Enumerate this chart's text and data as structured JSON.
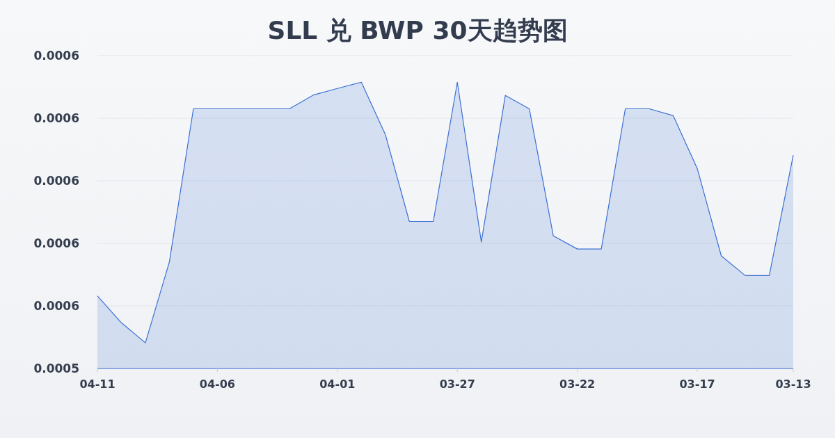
{
  "chart_data": {
    "type": "area",
    "title": "SLL 兑 BWP 30天趋势图",
    "categories": [
      "04-11",
      null,
      null,
      null,
      null,
      "04-06",
      null,
      null,
      null,
      null,
      "04-01",
      null,
      null,
      null,
      null,
      "03-27",
      null,
      null,
      null,
      null,
      "03-22",
      null,
      null,
      null,
      null,
      "03-17",
      null,
      null,
      null,
      "03-13"
    ],
    "values": [
      0.0005632,
      0.0005546,
      0.0005482,
      0.0005741,
      0.000623,
      0.000623,
      0.000623,
      0.000623,
      0.000623,
      0.0006274,
      0.0006295,
      0.0006315,
      0.0006148,
      0.000587,
      0.000587,
      0.0006315,
      0.0005804,
      0.0006273,
      0.000623,
      0.0005824,
      0.0005782,
      0.0005782,
      0.000623,
      0.000623,
      0.0006208,
      0.0006039,
      0.000576,
      0.0005697,
      0.0005697,
      0.0006082
    ],
    "color": "#3b6fd4",
    "ylim": [
      0.00054,
      0.00064
    ],
    "yticks": [
      {
        "value": 0.00054,
        "label": "0.0005"
      },
      {
        "value": 0.00056,
        "label": "0.0006"
      },
      {
        "value": 0.00058,
        "label": "0.0006"
      },
      {
        "value": 0.0006,
        "label": "0.0006"
      },
      {
        "value": 0.00062,
        "label": "0.0006"
      },
      {
        "value": 0.00064,
        "label": "0.0006"
      }
    ],
    "grid": "y"
  }
}
